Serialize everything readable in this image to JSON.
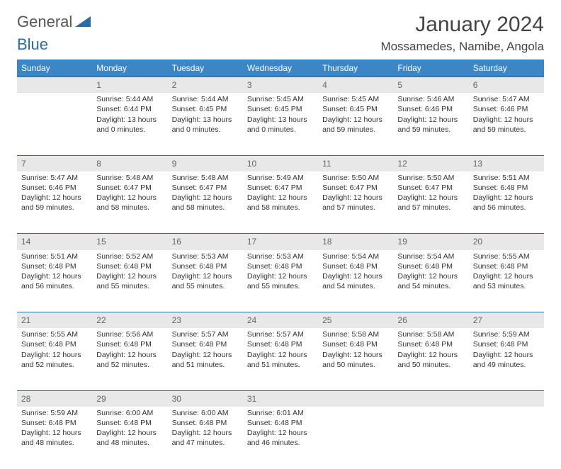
{
  "brand": {
    "part1": "General",
    "part2": "Blue"
  },
  "header": {
    "month_title": "January 2024",
    "location": "Mossamedes, Namibe, Angola"
  },
  "colors": {
    "header_bg": "#3d86c6",
    "header_text": "#ffffff",
    "daynum_bg": "#e8e8e8",
    "rule": "#2c6ca3",
    "text": "#333333"
  },
  "weekdays": [
    "Sunday",
    "Monday",
    "Tuesday",
    "Wednesday",
    "Thursday",
    "Friday",
    "Saturday"
  ],
  "weeks": [
    [
      null,
      {
        "n": "1",
        "sr": "5:44 AM",
        "ss": "6:44 PM",
        "dl": "13 hours and 0 minutes."
      },
      {
        "n": "2",
        "sr": "5:44 AM",
        "ss": "6:45 PM",
        "dl": "13 hours and 0 minutes."
      },
      {
        "n": "3",
        "sr": "5:45 AM",
        "ss": "6:45 PM",
        "dl": "13 hours and 0 minutes."
      },
      {
        "n": "4",
        "sr": "5:45 AM",
        "ss": "6:45 PM",
        "dl": "12 hours and 59 minutes."
      },
      {
        "n": "5",
        "sr": "5:46 AM",
        "ss": "6:46 PM",
        "dl": "12 hours and 59 minutes."
      },
      {
        "n": "6",
        "sr": "5:47 AM",
        "ss": "6:46 PM",
        "dl": "12 hours and 59 minutes."
      }
    ],
    [
      {
        "n": "7",
        "sr": "5:47 AM",
        "ss": "6:46 PM",
        "dl": "12 hours and 59 minutes."
      },
      {
        "n": "8",
        "sr": "5:48 AM",
        "ss": "6:47 PM",
        "dl": "12 hours and 58 minutes."
      },
      {
        "n": "9",
        "sr": "5:48 AM",
        "ss": "6:47 PM",
        "dl": "12 hours and 58 minutes."
      },
      {
        "n": "10",
        "sr": "5:49 AM",
        "ss": "6:47 PM",
        "dl": "12 hours and 58 minutes."
      },
      {
        "n": "11",
        "sr": "5:50 AM",
        "ss": "6:47 PM",
        "dl": "12 hours and 57 minutes."
      },
      {
        "n": "12",
        "sr": "5:50 AM",
        "ss": "6:47 PM",
        "dl": "12 hours and 57 minutes."
      },
      {
        "n": "13",
        "sr": "5:51 AM",
        "ss": "6:48 PM",
        "dl": "12 hours and 56 minutes."
      }
    ],
    [
      {
        "n": "14",
        "sr": "5:51 AM",
        "ss": "6:48 PM",
        "dl": "12 hours and 56 minutes."
      },
      {
        "n": "15",
        "sr": "5:52 AM",
        "ss": "6:48 PM",
        "dl": "12 hours and 55 minutes."
      },
      {
        "n": "16",
        "sr": "5:53 AM",
        "ss": "6:48 PM",
        "dl": "12 hours and 55 minutes."
      },
      {
        "n": "17",
        "sr": "5:53 AM",
        "ss": "6:48 PM",
        "dl": "12 hours and 55 minutes."
      },
      {
        "n": "18",
        "sr": "5:54 AM",
        "ss": "6:48 PM",
        "dl": "12 hours and 54 minutes."
      },
      {
        "n": "19",
        "sr": "5:54 AM",
        "ss": "6:48 PM",
        "dl": "12 hours and 54 minutes."
      },
      {
        "n": "20",
        "sr": "5:55 AM",
        "ss": "6:48 PM",
        "dl": "12 hours and 53 minutes."
      }
    ],
    [
      {
        "n": "21",
        "sr": "5:55 AM",
        "ss": "6:48 PM",
        "dl": "12 hours and 52 minutes."
      },
      {
        "n": "22",
        "sr": "5:56 AM",
        "ss": "6:48 PM",
        "dl": "12 hours and 52 minutes."
      },
      {
        "n": "23",
        "sr": "5:57 AM",
        "ss": "6:48 PM",
        "dl": "12 hours and 51 minutes."
      },
      {
        "n": "24",
        "sr": "5:57 AM",
        "ss": "6:48 PM",
        "dl": "12 hours and 51 minutes."
      },
      {
        "n": "25",
        "sr": "5:58 AM",
        "ss": "6:48 PM",
        "dl": "12 hours and 50 minutes."
      },
      {
        "n": "26",
        "sr": "5:58 AM",
        "ss": "6:48 PM",
        "dl": "12 hours and 50 minutes."
      },
      {
        "n": "27",
        "sr": "5:59 AM",
        "ss": "6:48 PM",
        "dl": "12 hours and 49 minutes."
      }
    ],
    [
      {
        "n": "28",
        "sr": "5:59 AM",
        "ss": "6:48 PM",
        "dl": "12 hours and 48 minutes."
      },
      {
        "n": "29",
        "sr": "6:00 AM",
        "ss": "6:48 PM",
        "dl": "12 hours and 48 minutes."
      },
      {
        "n": "30",
        "sr": "6:00 AM",
        "ss": "6:48 PM",
        "dl": "12 hours and 47 minutes."
      },
      {
        "n": "31",
        "sr": "6:01 AM",
        "ss": "6:48 PM",
        "dl": "12 hours and 46 minutes."
      },
      null,
      null,
      null
    ]
  ],
  "labels": {
    "sunrise": "Sunrise:",
    "sunset": "Sunset:",
    "daylight": "Daylight:"
  }
}
